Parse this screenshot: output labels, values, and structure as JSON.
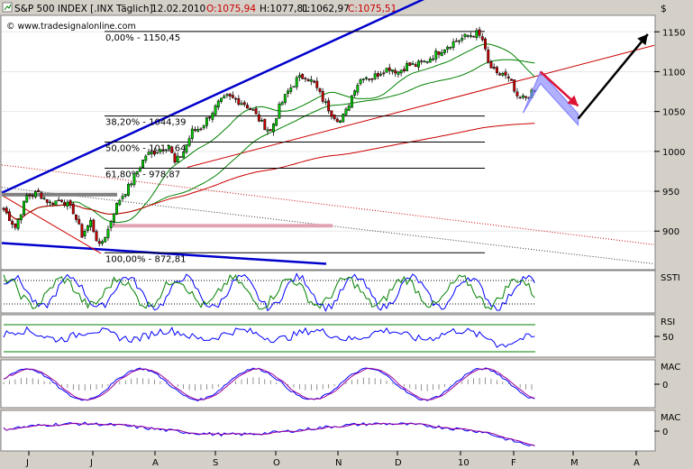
{
  "header": {
    "symbol": "S&P 500 INDEX [.INX Täglich]",
    "date": "12.02.2010",
    "open": "O:1075,94",
    "high": "H:1077,81",
    "low": "L:1062,97",
    "close": "C:1075,51",
    "currency": "$"
  },
  "watermark": "© www.tradesignalonline.com",
  "colors": {
    "background": "#d4d0c8",
    "panel": "#ffffff",
    "up_candle": "#00cc00",
    "down_candle": "#cc0000",
    "trend_blue": "#0000cc",
    "trend_red": "#cc0000",
    "ma_green": "#008000",
    "ma_red": "#cc0000",
    "arrow_black": "#000000",
    "arrow_red": "#dd1133",
    "projection": "#7b7bff",
    "support_gray": "#808080",
    "support_pink": "#e2a3b5",
    "ind_blue": "#0000ff",
    "ind_green": "#008000",
    "ind_purple": "#990099"
  },
  "chart_data": [
    {
      "type": "candlestick",
      "title": "S&P 500 INDEX [.INX Täglich]",
      "ylim": [
        855,
        1165
      ],
      "y_ticks": [
        900,
        950,
        1000,
        1050,
        1100,
        1150
      ],
      "x_months": [
        "J",
        "J",
        "A",
        "S",
        "O",
        "N",
        "D",
        "10",
        "F",
        "M",
        "A"
      ],
      "fib_levels": [
        {
          "label": "0,00% - 1150,45",
          "value": 1150.45
        },
        {
          "label": "38,20% - 1044,39",
          "value": 1044.39
        },
        {
          "label": "50,00% - 1011,64",
          "value": 1011.64
        },
        {
          "label": "61,80% - 978,87",
          "value": 978.87
        },
        {
          "label": "100,00% - 872,81",
          "value": 872.81
        }
      ],
      "anchors": [
        {
          "i": 0,
          "v": 928
        },
        {
          "i": 4,
          "v": 905
        },
        {
          "i": 8,
          "v": 944
        },
        {
          "i": 12,
          "v": 948
        },
        {
          "i": 16,
          "v": 935
        },
        {
          "i": 20,
          "v": 940
        },
        {
          "i": 24,
          "v": 925
        },
        {
          "i": 27,
          "v": 895
        },
        {
          "i": 30,
          "v": 912
        },
        {
          "i": 33,
          "v": 880
        },
        {
          "i": 36,
          "v": 902
        },
        {
          "i": 38,
          "v": 925
        },
        {
          "i": 40,
          "v": 940
        },
        {
          "i": 43,
          "v": 955
        },
        {
          "i": 46,
          "v": 975
        },
        {
          "i": 49,
          "v": 995
        },
        {
          "i": 51,
          "v": 998
        },
        {
          "i": 54,
          "v": 1003
        },
        {
          "i": 57,
          "v": 1008
        },
        {
          "i": 59,
          "v": 985
        },
        {
          "i": 62,
          "v": 1000
        },
        {
          "i": 65,
          "v": 1025
        },
        {
          "i": 68,
          "v": 1030
        },
        {
          "i": 71,
          "v": 1045
        },
        {
          "i": 74,
          "v": 1060
        },
        {
          "i": 77,
          "v": 1068
        },
        {
          "i": 80,
          "v": 1065
        },
        {
          "i": 83,
          "v": 1060
        },
        {
          "i": 86,
          "v": 1050
        },
        {
          "i": 89,
          "v": 1035
        },
        {
          "i": 92,
          "v": 1025
        },
        {
          "i": 95,
          "v": 1055
        },
        {
          "i": 98,
          "v": 1075
        },
        {
          "i": 101,
          "v": 1090
        },
        {
          "i": 104,
          "v": 1095
        },
        {
          "i": 107,
          "v": 1085
        },
        {
          "i": 110,
          "v": 1065
        },
        {
          "i": 113,
          "v": 1048
        },
        {
          "i": 116,
          "v": 1038
        },
        {
          "i": 118,
          "v": 1050
        },
        {
          "i": 121,
          "v": 1080
        },
        {
          "i": 124,
          "v": 1095
        },
        {
          "i": 127,
          "v": 1092
        },
        {
          "i": 130,
          "v": 1100
        },
        {
          "i": 133,
          "v": 1105
        },
        {
          "i": 136,
          "v": 1100
        },
        {
          "i": 139,
          "v": 1108
        },
        {
          "i": 142,
          "v": 1108
        },
        {
          "i": 145,
          "v": 1112
        },
        {
          "i": 148,
          "v": 1120
        },
        {
          "i": 151,
          "v": 1128
        },
        {
          "i": 154,
          "v": 1135
        },
        {
          "i": 157,
          "v": 1140
        },
        {
          "i": 160,
          "v": 1145
        },
        {
          "i": 163,
          "v": 1148
        },
        {
          "i": 165,
          "v": 1140
        },
        {
          "i": 167,
          "v": 1110
        },
        {
          "i": 170,
          "v": 1095
        },
        {
          "i": 172,
          "v": 1098
        },
        {
          "i": 175,
          "v": 1085
        },
        {
          "i": 177,
          "v": 1065
        },
        {
          "i": 180,
          "v": 1068
        },
        {
          "i": 183,
          "v": 1075
        }
      ],
      "n_bars": 184,
      "bar_spacing": 3.22,
      "projection_arrows": [
        {
          "color": "red",
          "from": {
            "i": 185,
            "v": 1100
          },
          "to": {
            "i": 198,
            "v": 1057
          }
        },
        {
          "color": "black",
          "from": {
            "i": 198,
            "v": 1041
          },
          "to": {
            "i": 222,
            "v": 1147
          }
        }
      ]
    },
    {
      "type": "line",
      "title": "SSTI",
      "y_ticks": []
    },
    {
      "type": "line",
      "title": "RSI",
      "y_ticks": [
        50
      ]
    },
    {
      "type": "line",
      "title": "MAC",
      "y_ticks": [
        0
      ]
    },
    {
      "type": "line",
      "title": "MAC",
      "y_ticks": [
        0
      ]
    }
  ]
}
